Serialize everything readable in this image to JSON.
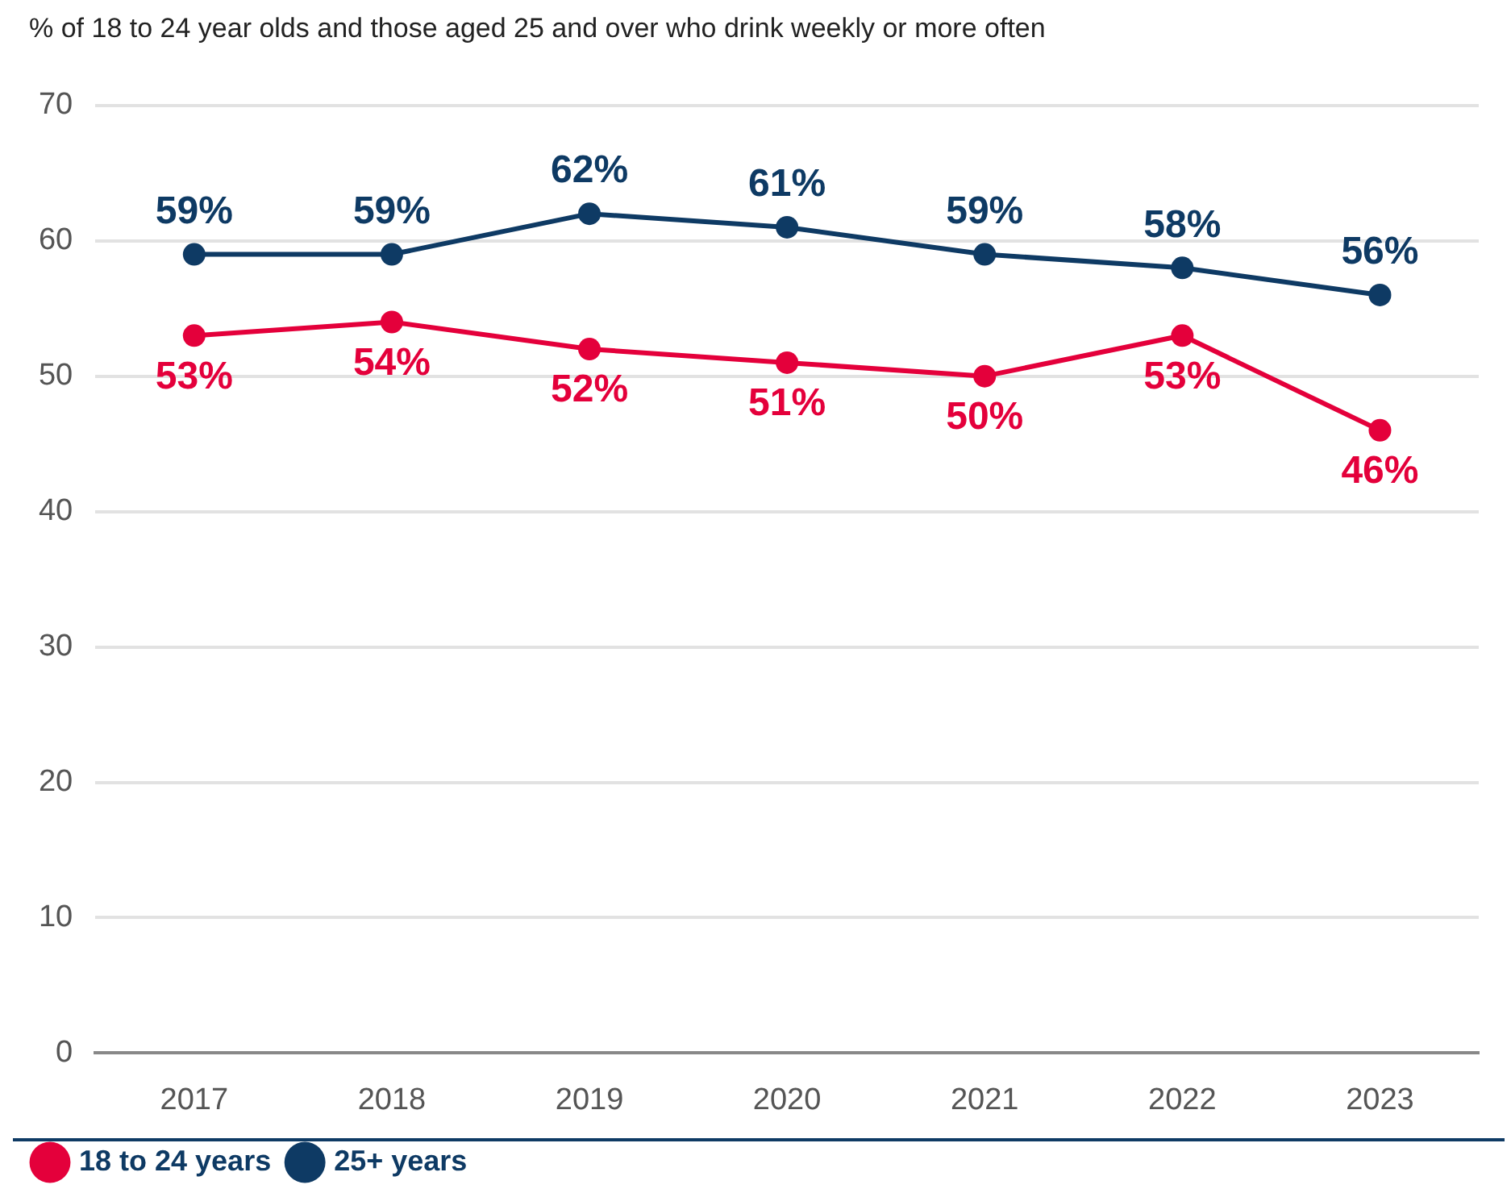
{
  "chart_data": {
    "type": "line",
    "title": "% of 18 to 24 year olds and those aged 25 and over who drink weekly or more often",
    "categories": [
      "2017",
      "2018",
      "2019",
      "2020",
      "2021",
      "2022",
      "2023"
    ],
    "series": [
      {
        "name": "18 to 24 years",
        "color": "#e4003b",
        "values": [
          53,
          54,
          52,
          51,
          50,
          53,
          46
        ],
        "value_labels": [
          "53%",
          "54%",
          "52%",
          "51%",
          "50%",
          "53%",
          "46%"
        ]
      },
      {
        "name": "25+ years",
        "color": "#0e3a64",
        "values": [
          59,
          59,
          62,
          61,
          59,
          58,
          56
        ],
        "value_labels": [
          "59%",
          "59%",
          "62%",
          "61%",
          "59%",
          "58%",
          "56%"
        ]
      }
    ],
    "ylim": [
      0,
      70
    ],
    "yticks": [
      0,
      10,
      20,
      30,
      40,
      50,
      60,
      70
    ],
    "grid": "y",
    "legend": "bottom left",
    "marker": "circle",
    "line_style": "solid"
  }
}
